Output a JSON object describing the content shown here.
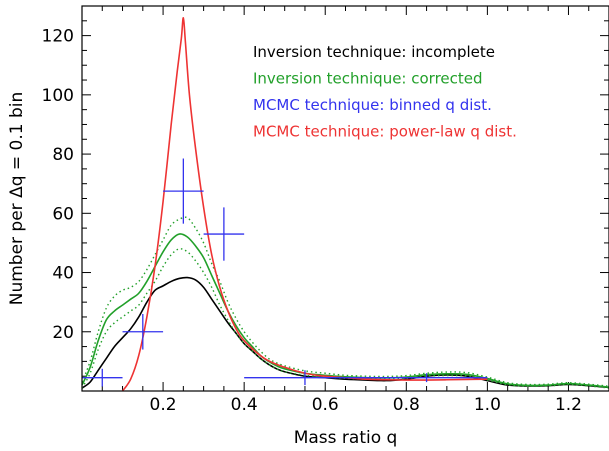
{
  "chart_data": {
    "type": "line",
    "xlabel": "Mass ratio q",
    "ylabel": "Number per Δq = 0.1 bin",
    "xlim": [
      0.0,
      1.3
    ],
    "ylim": [
      0,
      130
    ],
    "x_ticks": [
      0.2,
      0.4,
      0.6,
      0.8,
      1.0,
      1.2
    ],
    "x_tick_labels": [
      "0.2",
      "0.4",
      "0.6",
      "0.8",
      "1.0",
      "1.2"
    ],
    "y_ticks": [
      20,
      40,
      60,
      80,
      100,
      120
    ],
    "y_tick_labels": [
      "20",
      "40",
      "60",
      "80",
      "100",
      "120"
    ],
    "legend_position": "top-right",
    "series": [
      {
        "name": "Inversion technique: incomplete",
        "color": "#000000",
        "style": "solid",
        "x": [
          0.0,
          0.02,
          0.04,
          0.06,
          0.08,
          0.1,
          0.12,
          0.14,
          0.16,
          0.18,
          0.2,
          0.22,
          0.24,
          0.26,
          0.28,
          0.3,
          0.32,
          0.34,
          0.36,
          0.38,
          0.4,
          0.42,
          0.44,
          0.46,
          0.48,
          0.5,
          0.55,
          0.6,
          0.65,
          0.7,
          0.75,
          0.8,
          0.85,
          0.9,
          0.95,
          1.0,
          1.05,
          1.1,
          1.15,
          1.2,
          1.25,
          1.3
        ],
        "y": [
          1,
          3,
          7,
          11,
          15,
          18,
          21,
          25,
          30,
          34,
          35.5,
          37,
          38,
          38.3,
          37.5,
          35,
          31,
          27,
          23,
          19.5,
          16,
          13.5,
          11,
          9,
          7.5,
          6.5,
          5,
          4.5,
          4,
          3.7,
          3.5,
          4,
          5,
          5.4,
          5,
          3.5,
          2,
          1.7,
          1.8,
          2.2,
          1.8,
          1.2
        ]
      },
      {
        "name": "Inversion technique: corrected",
        "color": "#22a02a",
        "style": "solid",
        "x": [
          0.0,
          0.02,
          0.04,
          0.06,
          0.08,
          0.1,
          0.12,
          0.14,
          0.16,
          0.18,
          0.2,
          0.22,
          0.24,
          0.26,
          0.28,
          0.3,
          0.32,
          0.34,
          0.36,
          0.38,
          0.4,
          0.42,
          0.44,
          0.46,
          0.48,
          0.5,
          0.55,
          0.6,
          0.65,
          0.7,
          0.75,
          0.8,
          0.85,
          0.9,
          0.95,
          1.0,
          1.05,
          1.1,
          1.15,
          1.2,
          1.25,
          1.3
        ],
        "y": [
          2,
          8,
          17,
          24,
          27,
          29,
          31,
          33,
          37,
          42,
          47,
          51,
          53,
          52,
          49,
          45,
          39,
          33,
          27,
          22,
          18,
          15,
          12,
          10,
          8.5,
          7.5,
          6,
          5.3,
          4.8,
          4.5,
          4.4,
          4.7,
          5.5,
          5.8,
          5.6,
          4.2,
          2.4,
          1.9,
          2,
          2.5,
          2,
          1.3
        ]
      },
      {
        "name": "Inversion technique: corrected (upper bound)",
        "color": "#22a02a",
        "style": "dotted",
        "x": [
          0.0,
          0.02,
          0.04,
          0.06,
          0.08,
          0.1,
          0.12,
          0.14,
          0.16,
          0.18,
          0.2,
          0.22,
          0.24,
          0.26,
          0.28,
          0.3,
          0.32,
          0.34,
          0.36,
          0.38,
          0.4,
          0.42,
          0.44,
          0.46,
          0.48,
          0.5,
          0.55,
          0.6,
          0.65,
          0.7,
          0.75,
          0.8,
          0.85,
          0.9,
          0.95,
          1.0,
          1.05,
          1.1,
          1.15,
          1.2,
          1.25,
          1.3
        ],
        "y": [
          3,
          10,
          20,
          28,
          32,
          34,
          35,
          37,
          41,
          46,
          51,
          56,
          58,
          58.5,
          55,
          50,
          43,
          37,
          30,
          24.5,
          20,
          16.5,
          13.5,
          11,
          9.5,
          8.5,
          6.8,
          6,
          5.3,
          5,
          4.9,
          5.2,
          6,
          6.4,
          6.2,
          4.7,
          2.8,
          2.2,
          2.3,
          2.8,
          2.3,
          1.6
        ]
      },
      {
        "name": "Inversion technique: corrected (lower bound)",
        "color": "#22a02a",
        "style": "dotted",
        "x": [
          0.0,
          0.02,
          0.04,
          0.06,
          0.08,
          0.1,
          0.12,
          0.14,
          0.16,
          0.18,
          0.2,
          0.22,
          0.24,
          0.26,
          0.28,
          0.3,
          0.32,
          0.34,
          0.36,
          0.38,
          0.4,
          0.42,
          0.44,
          0.46,
          0.48,
          0.5,
          0.55,
          0.6,
          0.65,
          0.7,
          0.75,
          0.8,
          0.85,
          0.9,
          0.95,
          1.0,
          1.05,
          1.1,
          1.15,
          1.2,
          1.25,
          1.3
        ],
        "y": [
          1,
          6,
          14,
          20,
          23,
          25,
          27,
          29,
          33,
          37,
          42,
          46,
          48,
          47,
          44,
          40,
          35,
          29,
          24,
          19.5,
          16,
          13.5,
          11,
          9,
          7.5,
          6.5,
          5.3,
          4.7,
          4.3,
          4,
          4,
          4.2,
          5,
          5.2,
          5,
          3.7,
          2.1,
          1.6,
          1.7,
          2.2,
          1.7,
          1
        ]
      },
      {
        "name": "MCMC technique: power-law q dist.",
        "color": "#ee3333",
        "style": "solid",
        "x": [
          0.1,
          0.12,
          0.14,
          0.16,
          0.18,
          0.2,
          0.22,
          0.235,
          0.245,
          0.25,
          0.255,
          0.265,
          0.28,
          0.3,
          0.32,
          0.34,
          0.36,
          0.38,
          0.4,
          0.45,
          0.5,
          0.55,
          0.6,
          0.65,
          0.7,
          0.75,
          0.8,
          0.85,
          0.9,
          0.95,
          1.0
        ],
        "y": [
          0,
          4,
          12,
          25,
          42,
          64,
          90,
          108,
          119,
          126,
          118,
          100,
          82,
          62,
          46,
          35,
          27,
          21,
          17,
          11,
          8,
          6,
          5,
          4.5,
          4,
          3.8,
          3.7,
          3.7,
          3.8,
          3.9,
          4
        ]
      }
    ],
    "points": {
      "name": "MCMC technique: binned q dist.",
      "color": "#3333ee",
      "data": [
        {
          "x": 0.05,
          "y": 4.5,
          "x_err": 0.05,
          "y_err": 3
        },
        {
          "x": 0.15,
          "y": 20,
          "x_err": 0.05,
          "y_err": 6
        },
        {
          "x": 0.25,
          "y": 67.5,
          "x_err": 0.05,
          "y_err": 11
        },
        {
          "x": 0.35,
          "y": 53,
          "x_err": 0.05,
          "y_err": 9
        },
        {
          "x": 0.55,
          "y": 4.5,
          "x_err": 0.15,
          "y_err": 2.5
        },
        {
          "x": 0.85,
          "y": 4.5,
          "x_err": 0.15,
          "y_err": 1.5
        }
      ]
    },
    "legend": [
      {
        "label": "Inversion technique: incomplete",
        "color": "#000000"
      },
      {
        "label": "Inversion technique: corrected",
        "color": "#22a02a"
      },
      {
        "label": "MCMC technique: binned q dist.",
        "color": "#3333ee"
      },
      {
        "label": "MCMC technique: power-law q dist.",
        "color": "#ee3333"
      }
    ]
  }
}
